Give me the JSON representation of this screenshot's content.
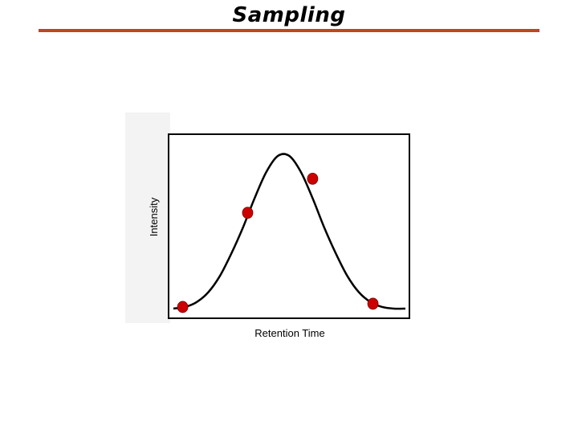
{
  "slide": {
    "title": "Sampling",
    "rule_color": "#c0461e"
  },
  "chart_data": {
    "type": "line",
    "title": "",
    "xlabel": "Retention Time",
    "ylabel": "Intensity",
    "grid": false,
    "xlim": [
      0,
      100
    ],
    "ylim": [
      0,
      100
    ],
    "series": [
      {
        "kind": "curve",
        "x": [
          0,
          5,
          10,
          15,
          20,
          25,
          30,
          35,
          40,
          45,
          50,
          55,
          60,
          65,
          70,
          75,
          80,
          85,
          90,
          95,
          100
        ],
        "values": [
          2,
          3,
          6,
          12,
          22,
          36,
          52,
          70,
          86,
          96,
          96,
          86,
          70,
          52,
          36,
          22,
          12,
          6,
          3,
          2,
          2
        ]
      },
      {
        "kind": "samples",
        "x": [
          4,
          32,
          60,
          86
        ],
        "values": [
          3,
          61,
          82,
          5
        ]
      }
    ],
    "colors": {
      "curve": "#000000",
      "samples": "#cc0000"
    }
  }
}
